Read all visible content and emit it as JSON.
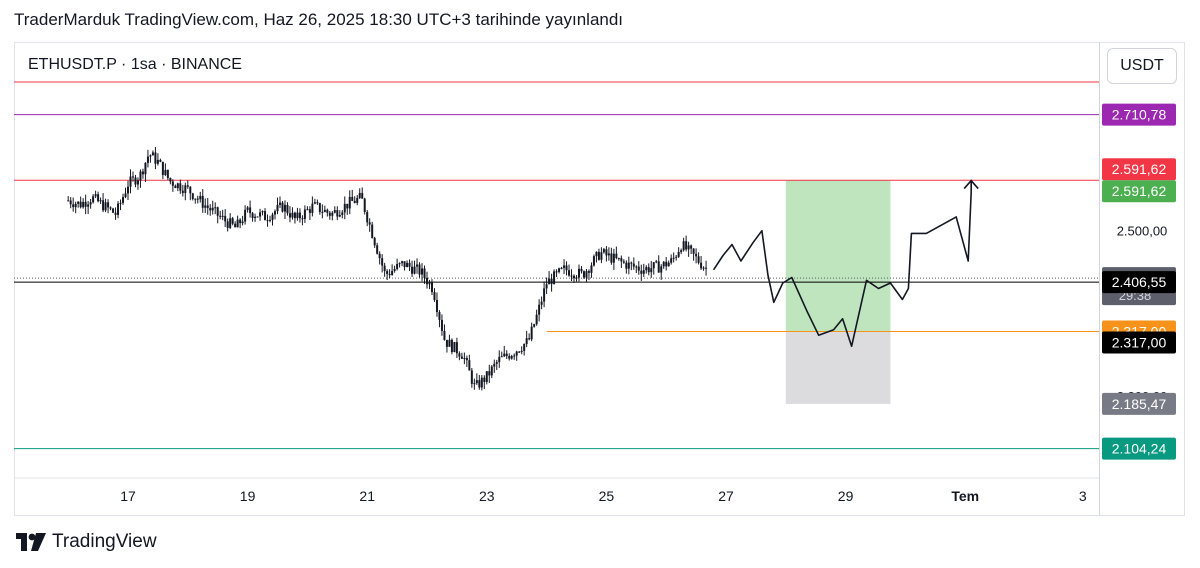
{
  "header": {
    "published": "TraderMarduk TradingView.com, Haz 26, 2025 18:30 UTC+3 tarihinde yayınlandı"
  },
  "chart": {
    "symbol": "ETHUSDT.P · 1sa · BINANCE",
    "currency": "USDT"
  },
  "footer": {
    "brand": "TradingView"
  },
  "chart_data": {
    "type": "candlestick",
    "symbol": "ETHUSDT.P",
    "interval": "1sa",
    "exchange": "BINANCE",
    "currency": "USDT",
    "ylim": [
      2080,
      2770
    ],
    "x_ticks": [
      "17",
      "19",
      "21",
      "23",
      "25",
      "27",
      "29",
      "Tem",
      "3"
    ],
    "y_ticks": [
      "2.500,00",
      "2.200,00"
    ],
    "price_path": [
      [
        16.0,
        2555
      ],
      [
        16.2,
        2548
      ],
      [
        16.4,
        2560
      ],
      [
        16.6,
        2545
      ],
      [
        16.8,
        2530
      ],
      [
        17.0,
        2585
      ],
      [
        17.2,
        2600
      ],
      [
        17.35,
        2640
      ],
      [
        17.5,
        2625
      ],
      [
        17.7,
        2590
      ],
      [
        18.0,
        2575
      ],
      [
        18.3,
        2545
      ],
      [
        18.6,
        2520
      ],
      [
        18.8,
        2505
      ],
      [
        19.0,
        2535
      ],
      [
        19.3,
        2525
      ],
      [
        19.6,
        2545
      ],
      [
        19.8,
        2520
      ],
      [
        20.1,
        2545
      ],
      [
        20.4,
        2530
      ],
      [
        20.7,
        2550
      ],
      [
        20.9,
        2560
      ],
      [
        21.1,
        2490
      ],
      [
        21.3,
        2420
      ],
      [
        21.6,
        2440
      ],
      [
        21.9,
        2425
      ],
      [
        22.1,
        2395
      ],
      [
        22.3,
        2300
      ],
      [
        22.6,
        2275
      ],
      [
        22.8,
        2215
      ],
      [
        23.0,
        2235
      ],
      [
        23.2,
        2265
      ],
      [
        23.45,
        2280
      ],
      [
        23.7,
        2300
      ],
      [
        23.85,
        2350
      ],
      [
        24.0,
        2405
      ],
      [
        24.3,
        2430
      ],
      [
        24.6,
        2420
      ],
      [
        24.9,
        2460
      ],
      [
        25.3,
        2440
      ],
      [
        25.6,
        2430
      ],
      [
        25.9,
        2435
      ],
      [
        26.1,
        2445
      ],
      [
        26.25,
        2475
      ],
      [
        26.45,
        2455
      ],
      [
        26.7,
        2428
      ]
    ],
    "horizontal_lines": [
      {
        "color": "#f23645",
        "price": 2770
      },
      {
        "color": "#9c27b0",
        "price": 2710.78
      },
      {
        "color": "#f23645",
        "price": 2591.62
      },
      {
        "color": "#000000",
        "price": 2406.55
      },
      {
        "color": "#f7931a",
        "price": 2317.0
      },
      {
        "color": "#089981",
        "price": 2104.24
      }
    ],
    "position_box": {
      "entry": 2317.0,
      "target": 2591.62,
      "stop": 2185.47,
      "x_start": 28.0,
      "x_end": 29.75,
      "profit_color": "#bfe5bf",
      "loss_color": "#dcdcde"
    },
    "projection_path": [
      [
        26.8,
        2430
      ],
      [
        26.95,
        2455
      ],
      [
        27.1,
        2475
      ],
      [
        27.25,
        2445
      ],
      [
        27.45,
        2478
      ],
      [
        27.6,
        2500
      ],
      [
        27.7,
        2420
      ],
      [
        27.8,
        2370
      ],
      [
        27.95,
        2405
      ],
      [
        28.1,
        2415
      ],
      [
        28.35,
        2355
      ],
      [
        28.55,
        2310
      ],
      [
        28.8,
        2320
      ],
      [
        28.95,
        2340
      ],
      [
        29.1,
        2290
      ],
      [
        29.35,
        2410
      ],
      [
        29.55,
        2395
      ],
      [
        29.75,
        2405
      ],
      [
        29.95,
        2375
      ],
      [
        30.05,
        2395
      ],
      [
        30.1,
        2495
      ],
      [
        30.35,
        2495
      ],
      [
        30.6,
        2510
      ],
      [
        30.85,
        2525
      ],
      [
        31.05,
        2445
      ],
      [
        31.1,
        2570
      ],
      [
        31.1,
        2591
      ]
    ],
    "price_labels": [
      {
        "text": "2.710,78",
        "price": 2710.78,
        "bg": "#9c27b0",
        "fg": "#ffffff"
      },
      {
        "text": "2.591,62",
        "price": 2591.62,
        "bg": "#f23645",
        "fg": "#ffffff",
        "offset": -1
      },
      {
        "text": "2.591,62",
        "price": 2591.62,
        "bg": "#4caf50",
        "fg": "#ffffff",
        "offset": 1
      },
      {
        "text": "2.413,98",
        "price": 2413.98,
        "bg": "#5d606b",
        "fg": "#ffffff",
        "sub": "29:38"
      },
      {
        "text": "2.406,55",
        "price": 2406.55,
        "bg": "#000000",
        "fg": "#ffffff"
      },
      {
        "text": "2.317,00",
        "price": 2317.0,
        "bg": "#f7931a",
        "fg": "#ffffff"
      },
      {
        "text": "2.317,00",
        "price": 2317.0,
        "bg": "#000000",
        "fg": "#ffffff",
        "offset": 1
      },
      {
        "text": "2.185,47",
        "price": 2185.47,
        "bg": "#787b86",
        "fg": "#ffffff"
      },
      {
        "text": "2.104,24",
        "price": 2104.24,
        "bg": "#089981",
        "fg": "#ffffff"
      }
    ],
    "last_price": 2413.98,
    "countdown": "29:38"
  }
}
